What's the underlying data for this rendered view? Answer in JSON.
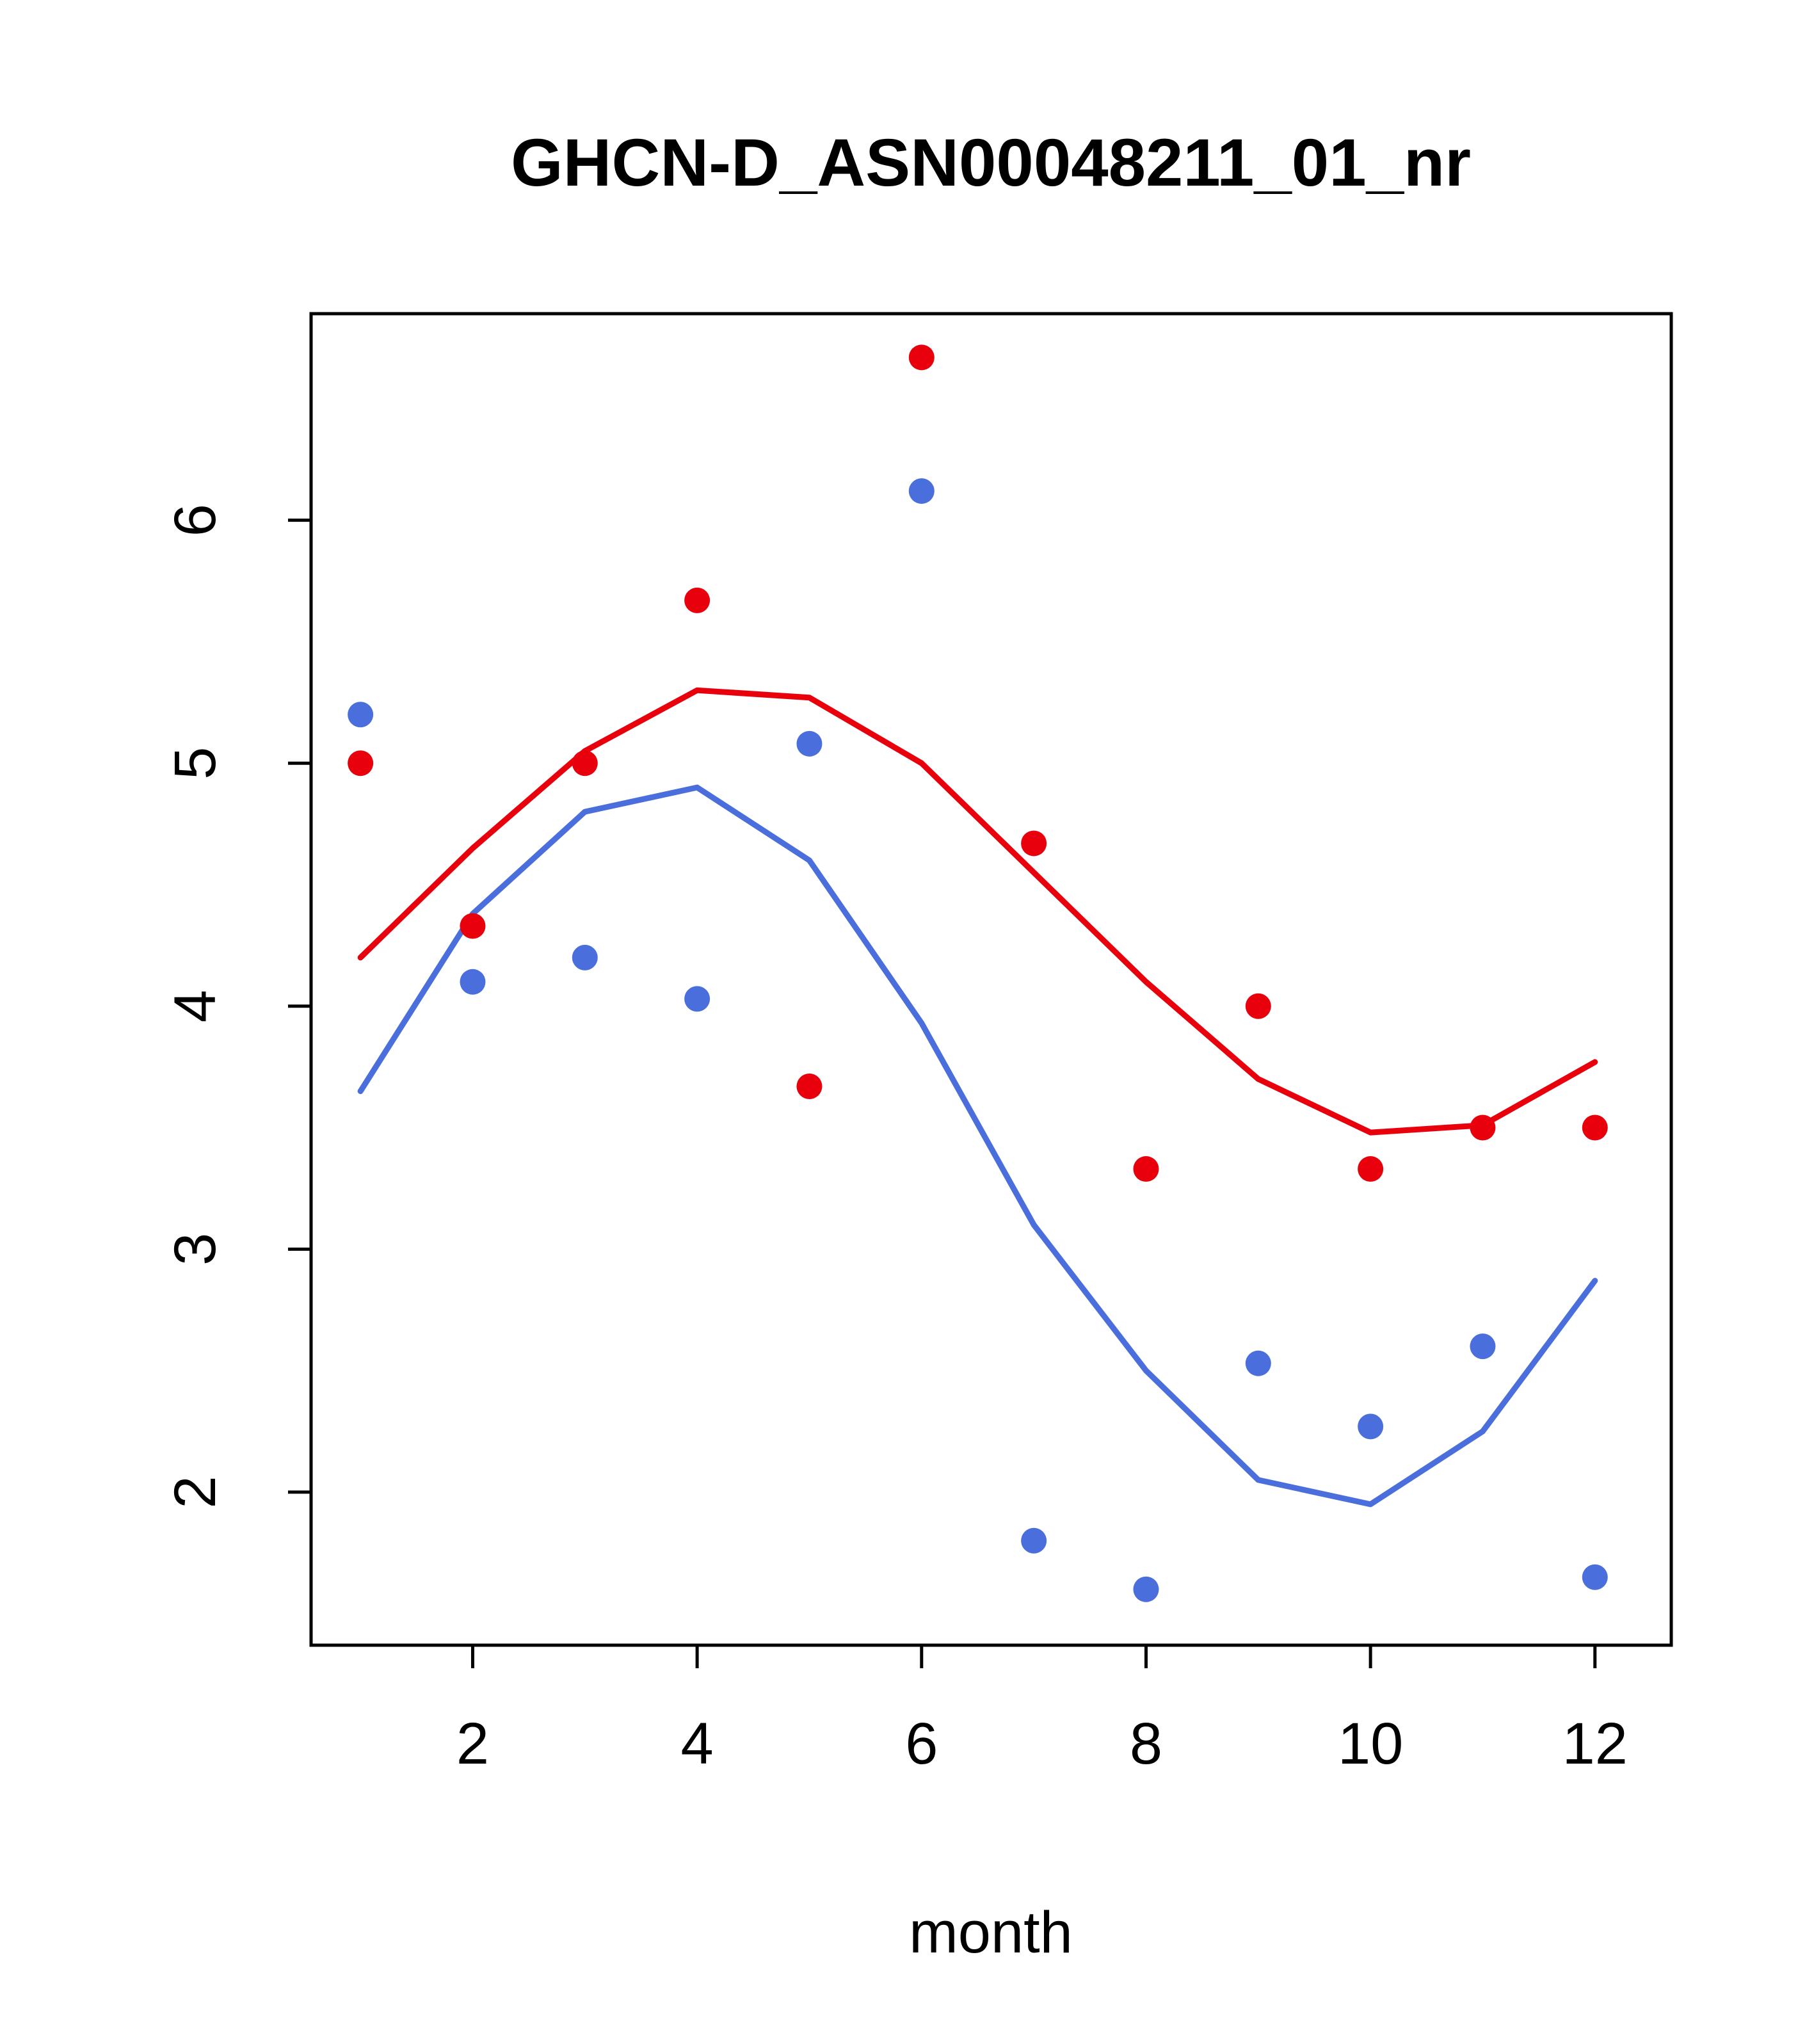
{
  "chart_data": {
    "type": "scatter",
    "title": "GHCN-D_ASN00048211_01_nr",
    "xlabel": "month",
    "ylabel": "",
    "x": [
      1,
      2,
      3,
      4,
      5,
      6,
      7,
      8,
      9,
      10,
      11,
      12
    ],
    "x_ticks": [
      2,
      4,
      6,
      8,
      10,
      12
    ],
    "y_ticks": [
      2,
      3,
      4,
      5,
      6
    ],
    "xlim": [
      0.56,
      12.68
    ],
    "ylim": [
      1.37,
      6.85
    ],
    "grid": false,
    "legend": "none",
    "colors": {
      "red": "#e8000d",
      "blue": "#4a6fdc",
      "axis": "#000000"
    },
    "series": [
      {
        "name": "blue-trend",
        "type": "line",
        "color": "#4a6fdc",
        "values": [
          3.65,
          4.38,
          4.8,
          4.9,
          4.6,
          3.93,
          3.1,
          2.5,
          2.05,
          1.95,
          2.25,
          2.87
        ]
      },
      {
        "name": "red-trend",
        "type": "line",
        "color": "#e8000d",
        "values": [
          4.2,
          4.65,
          5.05,
          5.3,
          5.27,
          5.0,
          4.55,
          4.1,
          3.7,
          3.48,
          3.51,
          3.77
        ]
      },
      {
        "name": "blue-observations",
        "type": "scatter",
        "color": "#4a6fdc",
        "values": [
          5.2,
          4.1,
          4.2,
          4.03,
          5.08,
          6.12,
          1.8,
          1.6,
          2.53,
          2.27,
          2.6,
          1.65
        ]
      },
      {
        "name": "red-observations",
        "type": "scatter",
        "color": "#e8000d",
        "values": [
          5.0,
          4.33,
          5.0,
          5.67,
          3.67,
          6.67,
          4.67,
          3.33,
          4.0,
          3.33,
          3.5,
          3.5
        ]
      }
    ]
  }
}
